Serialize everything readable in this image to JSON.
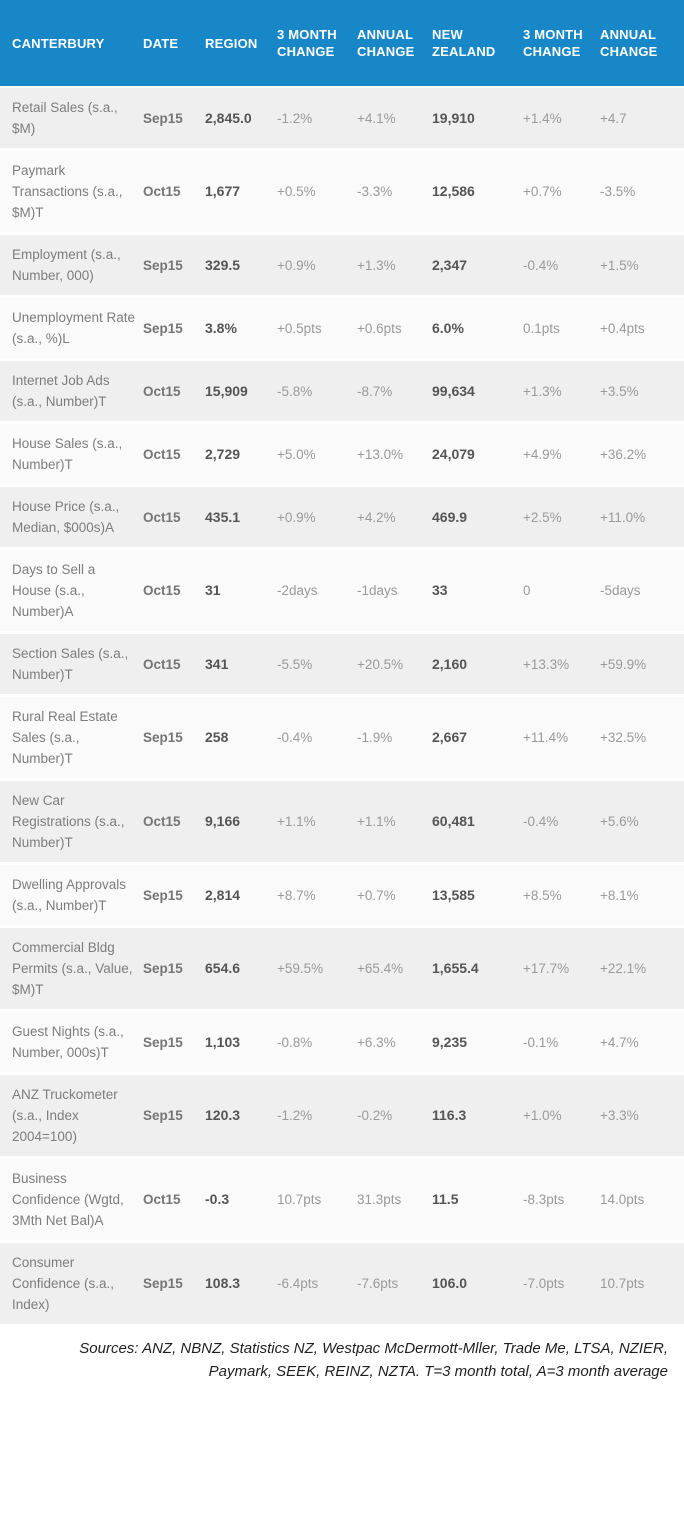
{
  "chart_data": {
    "type": "table",
    "title": "CANTERBURY",
    "columns": [
      "CANTERBURY",
      "DATE",
      "REGION",
      "3 MONTH CHANGE",
      "ANNUAL CHANGE",
      "NEW ZEALAND",
      "3 MONTH CHANGE",
      "ANNUAL CHANGE"
    ],
    "rows": [
      {
        "label": "Retail Sales (s.a., $M)",
        "date": "Sep15",
        "region": "2,845.0",
        "change_3m": "-1.2%",
        "annual_change": "+4.1%",
        "nz_value": "19,910",
        "nz_change_3m": "+1.4%",
        "nz_annual_change": "+4.7"
      },
      {
        "label": "Paymark Transactions (s.a., $M)T",
        "date": "Oct15",
        "region": "1,677",
        "change_3m": "+0.5%",
        "annual_change": "-3.3%",
        "nz_value": "12,586",
        "nz_change_3m": "+0.7%",
        "nz_annual_change": "-3.5%"
      },
      {
        "label": "Employment (s.a., Number, 000)",
        "date": "Sep15",
        "region": "329.5",
        "change_3m": "+0.9%",
        "annual_change": "+1.3%",
        "nz_value": "2,347",
        "nz_change_3m": "-0.4%",
        "nz_annual_change": "+1.5%"
      },
      {
        "label": "Unemployment Rate (s.a., %)L",
        "date": "Sep15",
        "region": "3.8%",
        "change_3m": "+0.5pts",
        "annual_change": "+0.6pts",
        "nz_value": "6.0%",
        "nz_change_3m": "0.1pts",
        "nz_annual_change": "+0.4pts"
      },
      {
        "label": "Internet Job Ads (s.a., Number)T",
        "date": "Oct15",
        "region": "15,909",
        "change_3m": "-5.8%",
        "annual_change": "-8.7%",
        "nz_value": "99,634",
        "nz_change_3m": "+1.3%",
        "nz_annual_change": "+3.5%"
      },
      {
        "label": "House Sales (s.a., Number)T",
        "date": "Oct15",
        "region": "2,729",
        "change_3m": "+5.0%",
        "annual_change": "+13.0%",
        "nz_value": "24,079",
        "nz_change_3m": "+4.9%",
        "nz_annual_change": "+36.2%"
      },
      {
        "label": "House Price (s.a., Median, $000s)A",
        "date": "Oct15",
        "region": "435.1",
        "change_3m": "+0.9%",
        "annual_change": "+4.2%",
        "nz_value": "469.9",
        "nz_change_3m": "+2.5%",
        "nz_annual_change": "+11.0%"
      },
      {
        "label": "Days to Sell a House (s.a., Number)A",
        "date": "Oct15",
        "region": "31",
        "change_3m": "-2days",
        "annual_change": "-1days",
        "nz_value": "33",
        "nz_change_3m": "0",
        "nz_annual_change": "-5days"
      },
      {
        "label": "Section Sales (s.a., Number)T",
        "date": "Oct15",
        "region": "341",
        "change_3m": "-5.5%",
        "annual_change": "+20.5%",
        "nz_value": "2,160",
        "nz_change_3m": "+13.3%",
        "nz_annual_change": "+59.9%"
      },
      {
        "label": "Rural Real Estate Sales (s.a., Number)T",
        "date": "Sep15",
        "region": "258",
        "change_3m": "-0.4%",
        "annual_change": "-1.9%",
        "nz_value": "2,667",
        "nz_change_3m": "+11.4%",
        "nz_annual_change": "+32.5%"
      },
      {
        "label": "New Car Registrations (s.a., Number)T",
        "date": "Oct15",
        "region": "9,166",
        "change_3m": "+1.1%",
        "annual_change": "+1.1%",
        "nz_value": "60,481",
        "nz_change_3m": "-0.4%",
        "nz_annual_change": "+5.6%"
      },
      {
        "label": "Dwelling Approvals (s.a., Number)T",
        "date": "Sep15",
        "region": "2,814",
        "change_3m": "+8.7%",
        "annual_change": "+0.7%",
        "nz_value": "13,585",
        "nz_change_3m": "+8.5%",
        "nz_annual_change": "+8.1%"
      },
      {
        "label": "Commercial Bldg Permits (s.a., Value, $M)T",
        "date": "Sep15",
        "region": "654.6",
        "change_3m": "+59.5%",
        "annual_change": "+65.4%",
        "nz_value": "1,655.4",
        "nz_change_3m": "+17.7%",
        "nz_annual_change": "+22.1%"
      },
      {
        "label": "Guest Nights (s.a., Number, 000s)T",
        "date": "Sep15",
        "region": "1,103",
        "change_3m": "-0.8%",
        "annual_change": "+6.3%",
        "nz_value": "9,235",
        "nz_change_3m": "-0.1%",
        "nz_annual_change": "+4.7%"
      },
      {
        "label": "ANZ Truckometer (s.a., Index 2004=100)",
        "date": "Sep15",
        "region": "120.3",
        "change_3m": "-1.2%",
        "annual_change": "-0.2%",
        "nz_value": "116.3",
        "nz_change_3m": "+1.0%",
        "nz_annual_change": "+3.3%"
      },
      {
        "label": "Business Confidence (Wgtd, 3Mth Net Bal)A",
        "date": "Oct15",
        "region": "-0.3",
        "change_3m": "10.7pts",
        "annual_change": "31.3pts",
        "nz_value": "11.5",
        "nz_change_3m": "-8.3pts",
        "nz_annual_change": "14.0pts"
      },
      {
        "label": "Consumer Confidence (s.a., Index)",
        "date": "Sep15",
        "region": "108.3",
        "change_3m": "-6.4pts",
        "annual_change": "-7.6pts",
        "nz_value": "106.0",
        "nz_change_3m": "-7.0pts",
        "nz_annual_change": "10.7pts"
      }
    ],
    "footnote_lines": [
      "Sources: ANZ, NBNZ, Statistics NZ, Westpac McDermott-Mller, Trade Me, LTSA, NZIER,",
      "Paymark, SEEK, REINZ, NZTA. T=3 month total, A=3 month average"
    ],
    "legend_notes": "T=3 month total, A=3 month average"
  },
  "colors": {
    "header_bg": "#1787c8",
    "row_odd": "#efefef",
    "row_even": "#fafafa",
    "label_text": "#7d7d7d",
    "date_text": "#757575",
    "bold_value_text": "#555555",
    "change_text": "#9a9a9a",
    "header_text": "#ffffff",
    "footer_text": "#1f1f1f"
  }
}
